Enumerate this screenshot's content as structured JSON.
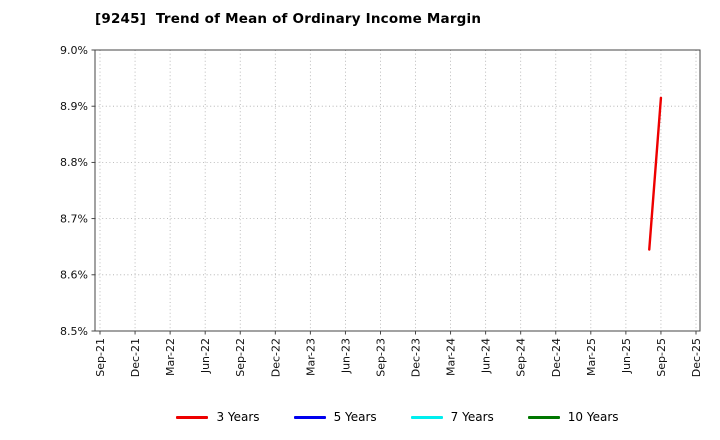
{
  "chart_data": {
    "type": "line",
    "title": "[9245]  Trend of Mean of Ordinary Income Margin",
    "xlabel": "",
    "ylabel": "",
    "ylim": [
      8.5,
      9.0
    ],
    "yticks": [
      8.5,
      8.6,
      8.7,
      8.8,
      8.9,
      9.0
    ],
    "ytick_suffix": "%",
    "grid": "dotted",
    "legend_position": "bottom",
    "x": [
      "Sep-21",
      "Dec-21",
      "Mar-22",
      "Jun-22",
      "Sep-22",
      "Dec-22",
      "Mar-23",
      "Jun-23",
      "Sep-23",
      "Dec-23",
      "Mar-24",
      "Jun-24",
      "Sep-24",
      "Dec-24",
      "Mar-25",
      "Jun-25",
      "Sep-25",
      "Dec-25"
    ],
    "series": [
      {
        "name": "3 Years",
        "color": "#ee0000",
        "points": [
          {
            "x": "Aug-25",
            "y": 8.645
          },
          {
            "x": "Sep-25",
            "y": 8.915
          }
        ]
      },
      {
        "name": "5 Years",
        "color": "#0000ee",
        "points": []
      },
      {
        "name": "7 Years",
        "color": "#00eeee",
        "points": []
      },
      {
        "name": "10 Years",
        "color": "#007700",
        "points": []
      }
    ]
  }
}
